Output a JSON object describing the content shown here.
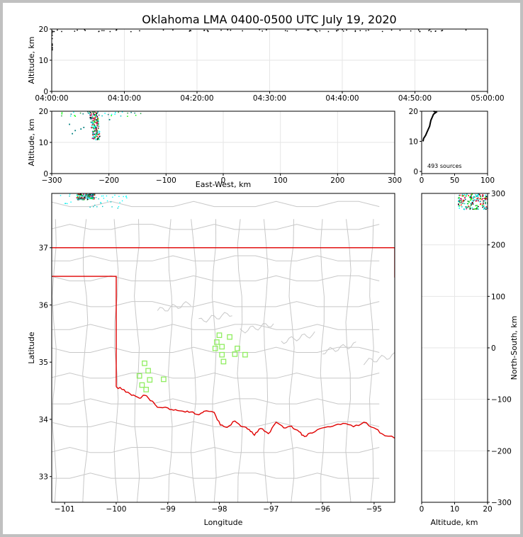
{
  "chart_data": {
    "title": "Oklahoma LMA 0400-0500 UTC July 19, 2020",
    "panels": [
      {
        "id": "time-height",
        "type": "scatter",
        "ylabel": "Altitude, km",
        "ylim": [
          0,
          20
        ],
        "yticks": [
          "0",
          "10",
          "20"
        ],
        "xticks": [
          "04:00:00",
          "04:10:00",
          "04:20:00",
          "04:30:00",
          "04:40:00",
          "04:50:00",
          "05:00:00"
        ],
        "grid": true
      },
      {
        "id": "ew-height",
        "type": "scatter",
        "ylabel": "Altitude, km",
        "xlabel": "East-West, km",
        "xlim": [
          -300,
          300
        ],
        "ylim": [
          0,
          20
        ],
        "xticks": [
          "−300",
          "−200",
          "−100",
          "0",
          "100",
          "200",
          "300"
        ],
        "yticks": [
          "0",
          "10",
          "20"
        ],
        "grid": true
      },
      {
        "id": "height-histogram",
        "type": "line",
        "xlim": [
          0,
          100
        ],
        "ylim": [
          0,
          20
        ],
        "xticks": [
          "0",
          "50",
          "100"
        ],
        "yticks": [
          "0",
          "10",
          "20"
        ],
        "annotation": "493 sources",
        "profile": [
          [
            2,
            10
          ],
          [
            3,
            11
          ],
          [
            6,
            12
          ],
          [
            8,
            13
          ],
          [
            10,
            14
          ],
          [
            12,
            15
          ],
          [
            13,
            16
          ],
          [
            14,
            17
          ],
          [
            16,
            18
          ],
          [
            18,
            19
          ],
          [
            22,
            19.7
          ],
          [
            18,
            20
          ]
        ]
      },
      {
        "id": "plan-view",
        "type": "scatter",
        "xlabel": "Longitude",
        "ylabel": "Latitude",
        "xlim": [
          -101.25,
          -94.6
        ],
        "ylim": [
          32.55,
          37.95
        ],
        "xticks": [
          "−101",
          "−100",
          "−99",
          "−98",
          "−97",
          "−96",
          "−95"
        ],
        "yticks": [
          "33",
          "34",
          "35",
          "36",
          "37"
        ],
        "square_markers": [
          [
            -98.0,
            35.47
          ],
          [
            -98.05,
            35.35
          ],
          [
            -97.8,
            35.44
          ],
          [
            -97.95,
            35.27
          ],
          [
            -98.08,
            35.24
          ],
          [
            -97.65,
            35.24
          ],
          [
            -97.95,
            35.13
          ],
          [
            -97.7,
            35.14
          ],
          [
            -97.5,
            35.13
          ],
          [
            -97.92,
            35.01
          ],
          [
            -99.45,
            34.98
          ],
          [
            -99.38,
            34.85
          ],
          [
            -99.55,
            34.76
          ],
          [
            -99.35,
            34.69
          ],
          [
            -99.08,
            34.7
          ],
          [
            -99.5,
            34.6
          ],
          [
            -99.42,
            34.52
          ]
        ]
      },
      {
        "id": "height-ns",
        "type": "scatter",
        "xlabel": "Altitude, km",
        "ylabel": "North-South, km",
        "xlim": [
          0,
          20
        ],
        "ylim": [
          -300,
          300
        ],
        "xticks": [
          "0",
          "10",
          "20"
        ],
        "yticks": [
          "−300",
          "−200",
          "−100",
          "0",
          "100",
          "200",
          "300"
        ],
        "grid": true
      }
    ],
    "colors": {
      "state_border": "#e00000",
      "county_lines": "#c8c8c8",
      "grid": "#e6e6e6",
      "marker": "#90ee60",
      "source_palette": [
        "#00ffff",
        "#00c8c8",
        "#008080",
        "#20a040",
        "#00ff00",
        "#ff0000",
        "#c00060",
        "#000000"
      ]
    }
  }
}
